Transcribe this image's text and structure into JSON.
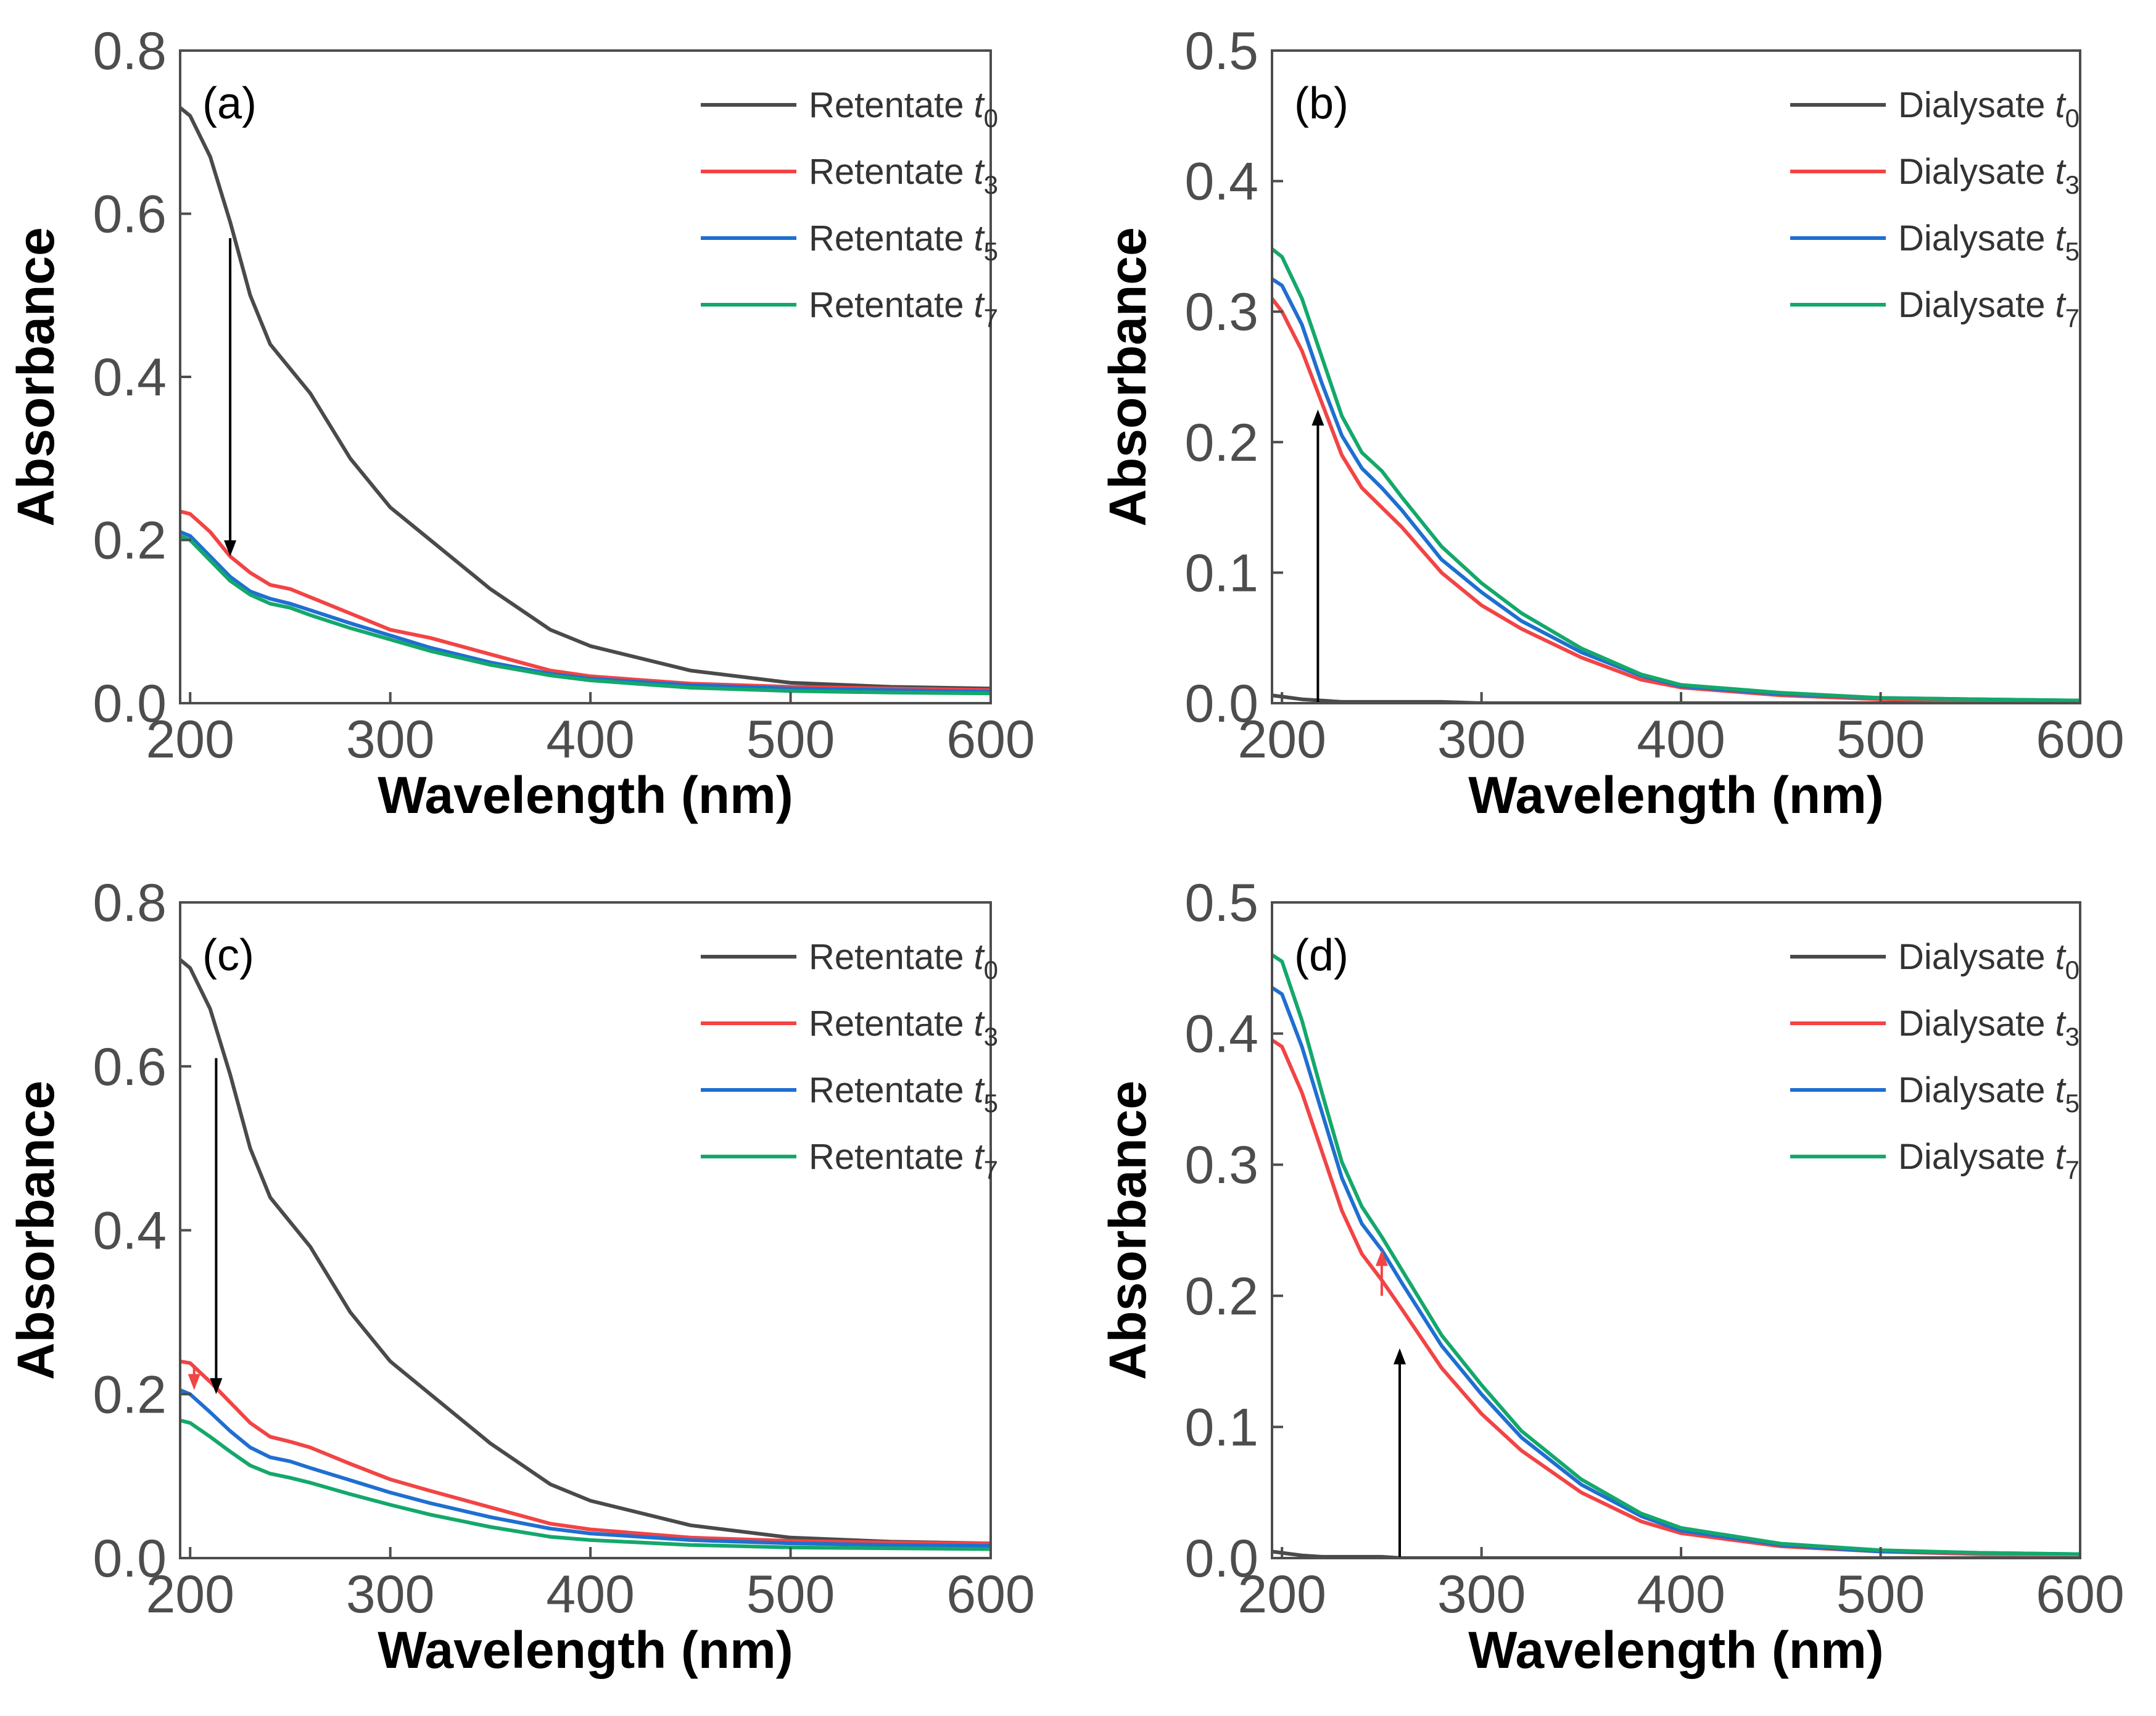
{
  "figure": {
    "description_panels": [
      "a",
      "b",
      "c",
      "d"
    ]
  },
  "chart_data": [
    {
      "type": "line",
      "panel_label": "(a)",
      "xlabel": "Wavelength (nm)",
      "ylabel": "Absorbance",
      "xlim": [
        195,
        600
      ],
      "ylim": [
        0,
        0.8
      ],
      "xticks": [
        200,
        300,
        400,
        500,
        600
      ],
      "xtick_labels": [
        "200",
        "300",
        "400",
        "500",
        "600"
      ],
      "yticks": [
        0,
        0.2,
        0.4,
        0.6,
        0.8
      ],
      "ytick_labels": [
        "0.0",
        "0.2",
        "0.4",
        "0.6",
        "0.8"
      ],
      "legend_position": "top-right",
      "x": [
        195,
        200,
        210,
        220,
        230,
        240,
        250,
        260,
        280,
        300,
        320,
        350,
        380,
        400,
        450,
        500,
        550,
        600
      ],
      "series": [
        {
          "name": "Retentate",
          "subscript": "0",
          "color": "#4a4a4a",
          "values": [
            0.73,
            0.72,
            0.67,
            0.59,
            0.5,
            0.44,
            0.41,
            0.38,
            0.3,
            0.24,
            0.2,
            0.14,
            0.09,
            0.07,
            0.04,
            0.025,
            0.02,
            0.018
          ]
        },
        {
          "name": "Retentate",
          "subscript": "3",
          "color": "#f24444",
          "values": [
            0.235,
            0.232,
            0.21,
            0.18,
            0.16,
            0.145,
            0.14,
            0.13,
            0.11,
            0.09,
            0.08,
            0.06,
            0.04,
            0.033,
            0.024,
            0.02,
            0.018,
            0.016
          ]
        },
        {
          "name": "Retentate",
          "subscript": "5",
          "color": "#1f6fd1",
          "values": [
            0.21,
            0.205,
            0.18,
            0.155,
            0.137,
            0.128,
            0.122,
            0.114,
            0.098,
            0.083,
            0.068,
            0.05,
            0.036,
            0.03,
            0.022,
            0.018,
            0.016,
            0.014
          ]
        },
        {
          "name": "Retentate",
          "subscript": "7",
          "color": "#14a86b",
          "values": [
            0.205,
            0.2,
            0.175,
            0.15,
            0.133,
            0.122,
            0.117,
            0.108,
            0.092,
            0.078,
            0.064,
            0.047,
            0.034,
            0.028,
            0.019,
            0.015,
            0.013,
            0.012
          ]
        }
      ],
      "arrows": [
        {
          "color": "#000000",
          "x": 220,
          "y_from": 0.57,
          "y_to": 0.18
        }
      ]
    },
    {
      "type": "line",
      "panel_label": "(b)",
      "xlabel": "Wavelength (nm)",
      "ylabel": "Absorbance",
      "xlim": [
        195,
        600
      ],
      "ylim": [
        0,
        0.5
      ],
      "xticks": [
        200,
        300,
        400,
        500,
        600
      ],
      "xtick_labels": [
        "200",
        "300",
        "400",
        "500",
        "600"
      ],
      "yticks": [
        0,
        0.1,
        0.2,
        0.3,
        0.4,
        0.5
      ],
      "ytick_labels": [
        "0.0",
        "0.1",
        "0.2",
        "0.3",
        "0.4",
        "0.5"
      ],
      "legend_position": "top-right",
      "x": [
        195,
        200,
        210,
        220,
        230,
        240,
        250,
        260,
        280,
        300,
        320,
        350,
        380,
        400,
        450,
        500,
        550,
        600
      ],
      "series": [
        {
          "name": "Dialysate",
          "subscript": "0",
          "color": "#4a4a4a",
          "values": [
            0.006,
            0.005,
            0.003,
            0.002,
            0.001,
            0.001,
            0.001,
            0.001,
            0.001,
            0.0,
            0.0,
            0.0,
            0.0,
            0.0,
            0.0,
            0.0,
            0.0,
            0.0
          ]
        },
        {
          "name": "Dialysate",
          "subscript": "3",
          "color": "#f24444",
          "values": [
            0.31,
            0.3,
            0.27,
            0.23,
            0.19,
            0.165,
            0.15,
            0.135,
            0.1,
            0.075,
            0.057,
            0.035,
            0.018,
            0.012,
            0.006,
            0.003,
            0.002,
            0.002
          ]
        },
        {
          "name": "Dialysate",
          "subscript": "5",
          "color": "#1f6fd1",
          "values": [
            0.325,
            0.32,
            0.29,
            0.245,
            0.205,
            0.18,
            0.165,
            0.148,
            0.11,
            0.085,
            0.063,
            0.039,
            0.021,
            0.013,
            0.007,
            0.004,
            0.003,
            0.002
          ]
        },
        {
          "name": "Dialysate",
          "subscript": "7",
          "color": "#14a86b",
          "values": [
            0.348,
            0.342,
            0.31,
            0.265,
            0.22,
            0.192,
            0.178,
            0.158,
            0.12,
            0.092,
            0.069,
            0.042,
            0.022,
            0.014,
            0.008,
            0.004,
            0.003,
            0.002
          ]
        }
      ],
      "arrows": [
        {
          "color": "#000000",
          "x": 218,
          "y_from": 0.0,
          "y_to": 0.225
        }
      ]
    },
    {
      "type": "line",
      "panel_label": "(c)",
      "xlabel": "Wavelength (nm)",
      "ylabel": "Absorbance",
      "xlim": [
        195,
        600
      ],
      "ylim": [
        0,
        0.8
      ],
      "xticks": [
        200,
        300,
        400,
        500,
        600
      ],
      "xtick_labels": [
        "200",
        "300",
        "400",
        "500",
        "600"
      ],
      "yticks": [
        0,
        0.2,
        0.4,
        0.6,
        0.8
      ],
      "ytick_labels": [
        "0.0",
        "0.2",
        "0.4",
        "0.6",
        "0.8"
      ],
      "legend_position": "top-right",
      "x": [
        195,
        200,
        210,
        220,
        230,
        240,
        250,
        260,
        280,
        300,
        320,
        350,
        380,
        400,
        450,
        500,
        550,
        600
      ],
      "series": [
        {
          "name": "Retentate",
          "subscript": "0",
          "color": "#4a4a4a",
          "values": [
            0.73,
            0.72,
            0.67,
            0.59,
            0.5,
            0.44,
            0.41,
            0.38,
            0.3,
            0.24,
            0.2,
            0.14,
            0.09,
            0.07,
            0.04,
            0.025,
            0.02,
            0.018
          ]
        },
        {
          "name": "Retentate",
          "subscript": "3",
          "color": "#f24444",
          "values": [
            0.24,
            0.238,
            0.215,
            0.19,
            0.165,
            0.148,
            0.142,
            0.135,
            0.115,
            0.096,
            0.082,
            0.062,
            0.042,
            0.035,
            0.025,
            0.021,
            0.019,
            0.018
          ]
        },
        {
          "name": "Retentate",
          "subscript": "5",
          "color": "#1f6fd1",
          "values": [
            0.205,
            0.2,
            0.178,
            0.155,
            0.135,
            0.123,
            0.118,
            0.11,
            0.095,
            0.08,
            0.067,
            0.05,
            0.036,
            0.03,
            0.022,
            0.018,
            0.016,
            0.015
          ]
        },
        {
          "name": "Retentate",
          "subscript": "7",
          "color": "#14a86b",
          "values": [
            0.168,
            0.165,
            0.148,
            0.13,
            0.113,
            0.103,
            0.098,
            0.092,
            0.078,
            0.065,
            0.053,
            0.038,
            0.026,
            0.022,
            0.016,
            0.013,
            0.012,
            0.011
          ]
        }
      ],
      "arrows": [
        {
          "color": "#000000",
          "x": 213,
          "y_from": 0.61,
          "y_to": 0.2
        },
        {
          "color": "#f24444",
          "x": 202,
          "y_from": 0.235,
          "y_to": 0.205
        }
      ]
    },
    {
      "type": "line",
      "panel_label": "(d)",
      "xlabel": "Wavelength (nm)",
      "ylabel": "Absorbance",
      "xlim": [
        195,
        600
      ],
      "ylim": [
        0,
        0.5
      ],
      "xticks": [
        200,
        300,
        400,
        500,
        600
      ],
      "xtick_labels": [
        "200",
        "300",
        "400",
        "500",
        "600"
      ],
      "yticks": [
        0,
        0.1,
        0.2,
        0.3,
        0.4,
        0.5
      ],
      "ytick_labels": [
        "0.0",
        "0.1",
        "0.2",
        "0.3",
        "0.4",
        "0.5"
      ],
      "legend_position": "top-right",
      "x": [
        195,
        200,
        210,
        220,
        230,
        240,
        250,
        260,
        280,
        300,
        320,
        350,
        380,
        400,
        450,
        500,
        550,
        600
      ],
      "series": [
        {
          "name": "Dialysate",
          "subscript": "0",
          "color": "#4a4a4a",
          "values": [
            0.005,
            0.004,
            0.002,
            0.001,
            0.001,
            0.001,
            0.001,
            0.0,
            0.0,
            0.0,
            0.0,
            0.0,
            0.0,
            0.0,
            0.0,
            0.0,
            0.0,
            0.0
          ]
        },
        {
          "name": "Dialysate",
          "subscript": "3",
          "color": "#f24444",
          "values": [
            0.395,
            0.39,
            0.355,
            0.31,
            0.265,
            0.232,
            0.212,
            0.19,
            0.145,
            0.11,
            0.082,
            0.05,
            0.028,
            0.019,
            0.009,
            0.005,
            0.003,
            0.003
          ]
        },
        {
          "name": "Dialysate",
          "subscript": "5",
          "color": "#1f6fd1",
          "values": [
            0.435,
            0.43,
            0.39,
            0.34,
            0.29,
            0.255,
            0.235,
            0.21,
            0.162,
            0.125,
            0.092,
            0.056,
            0.032,
            0.021,
            0.01,
            0.005,
            0.004,
            0.003
          ]
        },
        {
          "name": "Dialysate",
          "subscript": "7",
          "color": "#14a86b",
          "values": [
            0.46,
            0.455,
            0.41,
            0.355,
            0.302,
            0.268,
            0.245,
            0.22,
            0.17,
            0.132,
            0.097,
            0.06,
            0.034,
            0.023,
            0.011,
            0.006,
            0.004,
            0.003
          ]
        }
      ],
      "arrows": [
        {
          "color": "#000000",
          "x": 259,
          "y_from": 0.0,
          "y_to": 0.16
        },
        {
          "color": "#f24444",
          "x": 250,
          "y_from": 0.2,
          "y_to": 0.235
        }
      ]
    }
  ]
}
